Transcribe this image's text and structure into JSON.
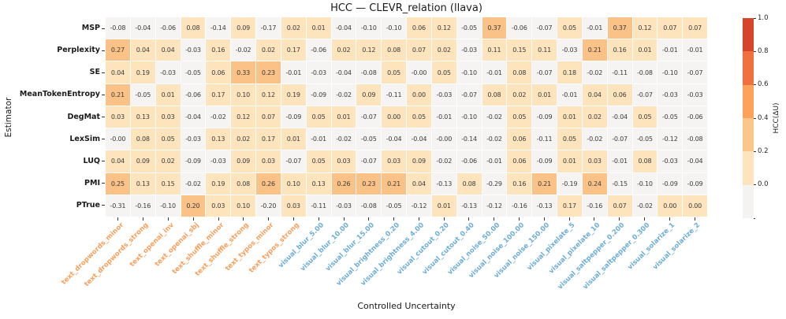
{
  "chart_data": {
    "type": "heatmap",
    "title": "HCC — CLEVR_relation (llava)",
    "xlabel": "Controlled Uncertainty",
    "ylabel": "Estimator",
    "rows": [
      "MSP",
      "Perplexity",
      "SE",
      "MeanTokenEntropy",
      "DegMat",
      "LexSim",
      "LUQ",
      "PMI",
      "PTrue"
    ],
    "columns": [
      "text_dropwords_minor",
      "text_dropwords_strong",
      "text_openai_inv",
      "text_openai_sbj",
      "text_shuffle_minor",
      "text_shuffle_strong",
      "text_typos_minor",
      "text_typos_strong",
      "visual_blur_5.00",
      "visual_blur_10.00",
      "visual_blur_15.00",
      "visual_brightness_0.20",
      "visual_brightness_4.00",
      "visual_cutout_0.20",
      "visual_cutout_0.40",
      "visual_noise_50.00",
      "visual_noise_100.00",
      "visual_noise_150.00",
      "visual_pixelate_5",
      "visual_pixelate_10",
      "visual_saltpepper_0.200",
      "visual_saltpepper_0.300",
      "visual_solarize_1",
      "visual_solarize_2"
    ],
    "values": [
      [
        "-0.08",
        "-0.04",
        "-0.06",
        "0.08",
        "-0.14",
        "0.09",
        "-0.17",
        "0.02",
        "0.01",
        "-0.04",
        "-0.10",
        "-0.10",
        "0.06",
        "0.12",
        "-0.05",
        "0.37",
        "-0.06",
        "-0.07",
        "0.05",
        "-0.01",
        "0.37",
        "0.12",
        "0.07",
        "0.07"
      ],
      [
        "0.27",
        "0.04",
        "0.04",
        "-0.03",
        "0.16",
        "-0.02",
        "0.02",
        "0.17",
        "-0.06",
        "0.02",
        "0.12",
        "0.08",
        "0.07",
        "0.02",
        "-0.03",
        "0.11",
        "0.15",
        "0.11",
        "-0.03",
        "0.21",
        "0.16",
        "0.01",
        "-0.01",
        "-0.01"
      ],
      [
        "0.04",
        "0.19",
        "-0.03",
        "-0.05",
        "0.06",
        "0.33",
        "0.23",
        "-0.01",
        "-0.03",
        "-0.04",
        "-0.08",
        "0.05",
        "-0.00",
        "0.05",
        "-0.10",
        "-0.01",
        "0.08",
        "-0.07",
        "0.18",
        "-0.02",
        "-0.11",
        "-0.08",
        "-0.10",
        "-0.07"
      ],
      [
        "0.21",
        "-0.05",
        "0.01",
        "-0.06",
        "0.17",
        "0.10",
        "0.12",
        "0.19",
        "-0.09",
        "-0.02",
        "0.09",
        "-0.11",
        "0.00",
        "-0.03",
        "-0.07",
        "0.08",
        "0.02",
        "0.01",
        "-0.01",
        "0.04",
        "0.06",
        "-0.07",
        "-0.03",
        "-0.03"
      ],
      [
        "0.03",
        "0.13",
        "0.03",
        "-0.04",
        "-0.02",
        "0.12",
        "0.07",
        "-0.09",
        "0.05",
        "0.01",
        "-0.07",
        "0.00",
        "0.05",
        "-0.01",
        "-0.10",
        "-0.02",
        "0.05",
        "-0.09",
        "0.01",
        "0.02",
        "-0.04",
        "0.05",
        "-0.05",
        "-0.06"
      ],
      [
        "-0.00",
        "0.08",
        "0.05",
        "-0.03",
        "0.13",
        "0.02",
        "0.17",
        "0.01",
        "-0.01",
        "-0.02",
        "-0.05",
        "-0.04",
        "-0.04",
        "-0.00",
        "-0.14",
        "-0.02",
        "0.06",
        "-0.11",
        "0.05",
        "-0.02",
        "-0.07",
        "-0.05",
        "-0.12",
        "-0.08"
      ],
      [
        "0.04",
        "0.09",
        "0.02",
        "-0.09",
        "-0.03",
        "0.09",
        "0.03",
        "-0.07",
        "0.05",
        "0.03",
        "-0.07",
        "0.03",
        "0.09",
        "-0.02",
        "-0.06",
        "-0.01",
        "0.06",
        "-0.09",
        "0.01",
        "0.03",
        "-0.01",
        "0.08",
        "-0.03",
        "-0.04"
      ],
      [
        "0.25",
        "0.13",
        "0.15",
        "-0.02",
        "0.19",
        "0.08",
        "0.26",
        "0.10",
        "0.13",
        "0.26",
        "0.23",
        "0.21",
        "0.04",
        "-0.13",
        "0.08",
        "-0.29",
        "0.16",
        "0.21",
        "-0.19",
        "0.24",
        "-0.15",
        "-0.10",
        "-0.09",
        "-0.09"
      ],
      [
        "-0.31",
        "-0.16",
        "-0.10",
        "0.20",
        "0.03",
        "0.10",
        "-0.20",
        "0.03",
        "-0.11",
        "-0.03",
        "-0.08",
        "-0.05",
        "-0.12",
        "0.01",
        "-0.13",
        "-0.12",
        "-0.16",
        "-0.13",
        "0.17",
        "-0.16",
        "0.07",
        "-0.02",
        "0.00",
        "0.00"
      ]
    ],
    "color_bins": {
      "negative": "#f5f4f2",
      "low": "#fde4bd",
      "mid": "#fbc287"
    },
    "column_label_colors": {
      "text": "#f99e58",
      "visual": "#6badd6"
    },
    "colorbar": {
      "label": "HCC(ΔU)",
      "tick_labels": [
        "1.0",
        "0.8",
        "0.6",
        "0.4",
        "0.2",
        "0.0"
      ],
      "band_colors_top_to_bottom": [
        "#d7442c",
        "#f0703f",
        "#fba35b",
        "#fbc68b",
        "#fde4bd",
        "#f4f3f2"
      ]
    },
    "legend_position": "right",
    "grid": false
  }
}
